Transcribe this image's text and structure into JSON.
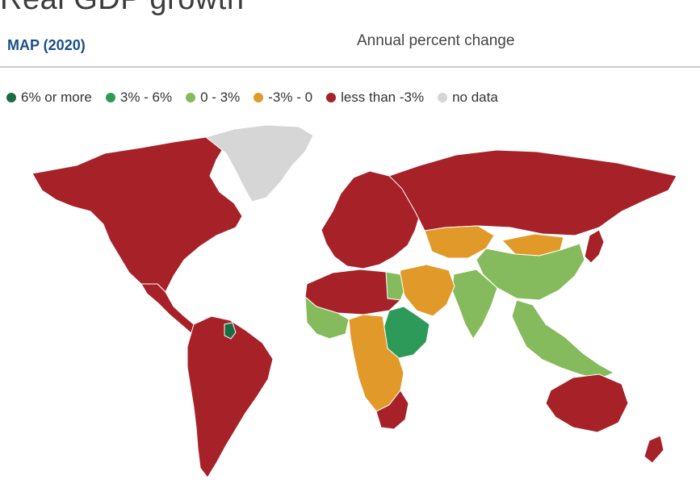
{
  "header": {
    "title": "Real GDP growth",
    "map_label": "MAP (2020)",
    "unit_label": "Annual percent change"
  },
  "legend": [
    {
      "label": "6% or more",
      "color": "#1b6b43"
    },
    {
      "label": "3% - 6%",
      "color": "#2e9a5a"
    },
    {
      "label": "0 - 3%",
      "color": "#85bb5c"
    },
    {
      "label": "-3% - 0",
      "color": "#e19a2a"
    },
    {
      "label": "less than -3%",
      "color": "#a62128"
    },
    {
      "label": "no data",
      "color": "#d6d6d6"
    }
  ],
  "regions": [
    {
      "name": "north-america",
      "category": "less than -3%"
    },
    {
      "name": "greenland",
      "category": "no data"
    },
    {
      "name": "central-america",
      "category": "less than -3%"
    },
    {
      "name": "south-america",
      "category": "less than -3%"
    },
    {
      "name": "guyana",
      "category": "6% or more"
    },
    {
      "name": "europe",
      "category": "less than -3%"
    },
    {
      "name": "russia",
      "category": "less than -3%"
    },
    {
      "name": "central-asia",
      "category": "-3% - 0"
    },
    {
      "name": "mongolia",
      "category": "-3% - 0"
    },
    {
      "name": "china",
      "category": "0 - 3%"
    },
    {
      "name": "india",
      "category": "0 - 3%"
    },
    {
      "name": "middle-east",
      "category": "-3% - 0"
    },
    {
      "name": "north-africa",
      "category": "less than -3%"
    },
    {
      "name": "egypt",
      "category": "0 - 3%"
    },
    {
      "name": "west-africa",
      "category": "0 - 3%"
    },
    {
      "name": "east-africa",
      "category": "3% - 6%"
    },
    {
      "name": "central-africa",
      "category": "-3% - 0"
    },
    {
      "name": "southern-africa",
      "category": "less than -3%"
    },
    {
      "name": "southeast-asia",
      "category": "0 - 3%"
    },
    {
      "name": "japan",
      "category": "less than -3%"
    },
    {
      "name": "australia",
      "category": "less than -3%"
    },
    {
      "name": "new-zealand",
      "category": "less than -3%"
    }
  ]
}
